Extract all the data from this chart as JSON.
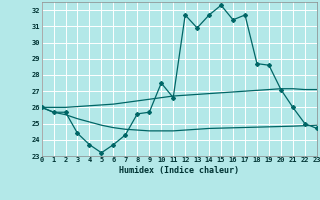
{
  "xlabel": "Humidex (Indice chaleur)",
  "bg_color": "#b3e8e8",
  "grid_color": "#ffffff",
  "line_color": "#006666",
  "xlim": [
    0,
    23
  ],
  "ylim": [
    23,
    32.5
  ],
  "yticks": [
    23,
    24,
    25,
    26,
    27,
    28,
    29,
    30,
    31,
    32
  ],
  "xticks": [
    0,
    1,
    2,
    3,
    4,
    5,
    6,
    7,
    8,
    9,
    10,
    11,
    12,
    13,
    14,
    15,
    16,
    17,
    18,
    19,
    20,
    21,
    22,
    23
  ],
  "main_line_x": [
    0,
    1,
    2,
    3,
    4,
    5,
    6,
    7,
    8,
    9,
    10,
    11,
    12,
    13,
    14,
    15,
    16,
    17,
    18,
    19,
    20,
    21,
    22,
    23
  ],
  "main_line_y": [
    26.0,
    25.7,
    25.7,
    24.4,
    23.7,
    23.2,
    23.7,
    24.3,
    25.6,
    25.7,
    27.5,
    26.6,
    31.7,
    30.9,
    31.7,
    32.3,
    31.4,
    31.7,
    28.7,
    28.6,
    27.1,
    26.0,
    25.0,
    24.7
  ],
  "upper_line_x": [
    0,
    1,
    2,
    3,
    4,
    5,
    6,
    7,
    8,
    9,
    10,
    11,
    12,
    13,
    14,
    15,
    16,
    17,
    18,
    19,
    20,
    21,
    22,
    23
  ],
  "upper_line_y": [
    26.0,
    26.0,
    26.0,
    26.05,
    26.1,
    26.15,
    26.2,
    26.3,
    26.4,
    26.5,
    26.6,
    26.7,
    26.75,
    26.8,
    26.85,
    26.9,
    26.95,
    27.0,
    27.05,
    27.1,
    27.15,
    27.15,
    27.1,
    27.1
  ],
  "lower_line_x": [
    0,
    1,
    2,
    3,
    4,
    5,
    6,
    7,
    8,
    9,
    10,
    11,
    12,
    13,
    14,
    15,
    16,
    17,
    18,
    19,
    20,
    21,
    22,
    23
  ],
  "lower_line_y": [
    26.0,
    25.7,
    25.55,
    25.3,
    25.1,
    24.9,
    24.75,
    24.65,
    24.6,
    24.55,
    24.55,
    24.55,
    24.6,
    24.65,
    24.7,
    24.72,
    24.74,
    24.76,
    24.78,
    24.8,
    24.82,
    24.84,
    24.87,
    24.9
  ]
}
